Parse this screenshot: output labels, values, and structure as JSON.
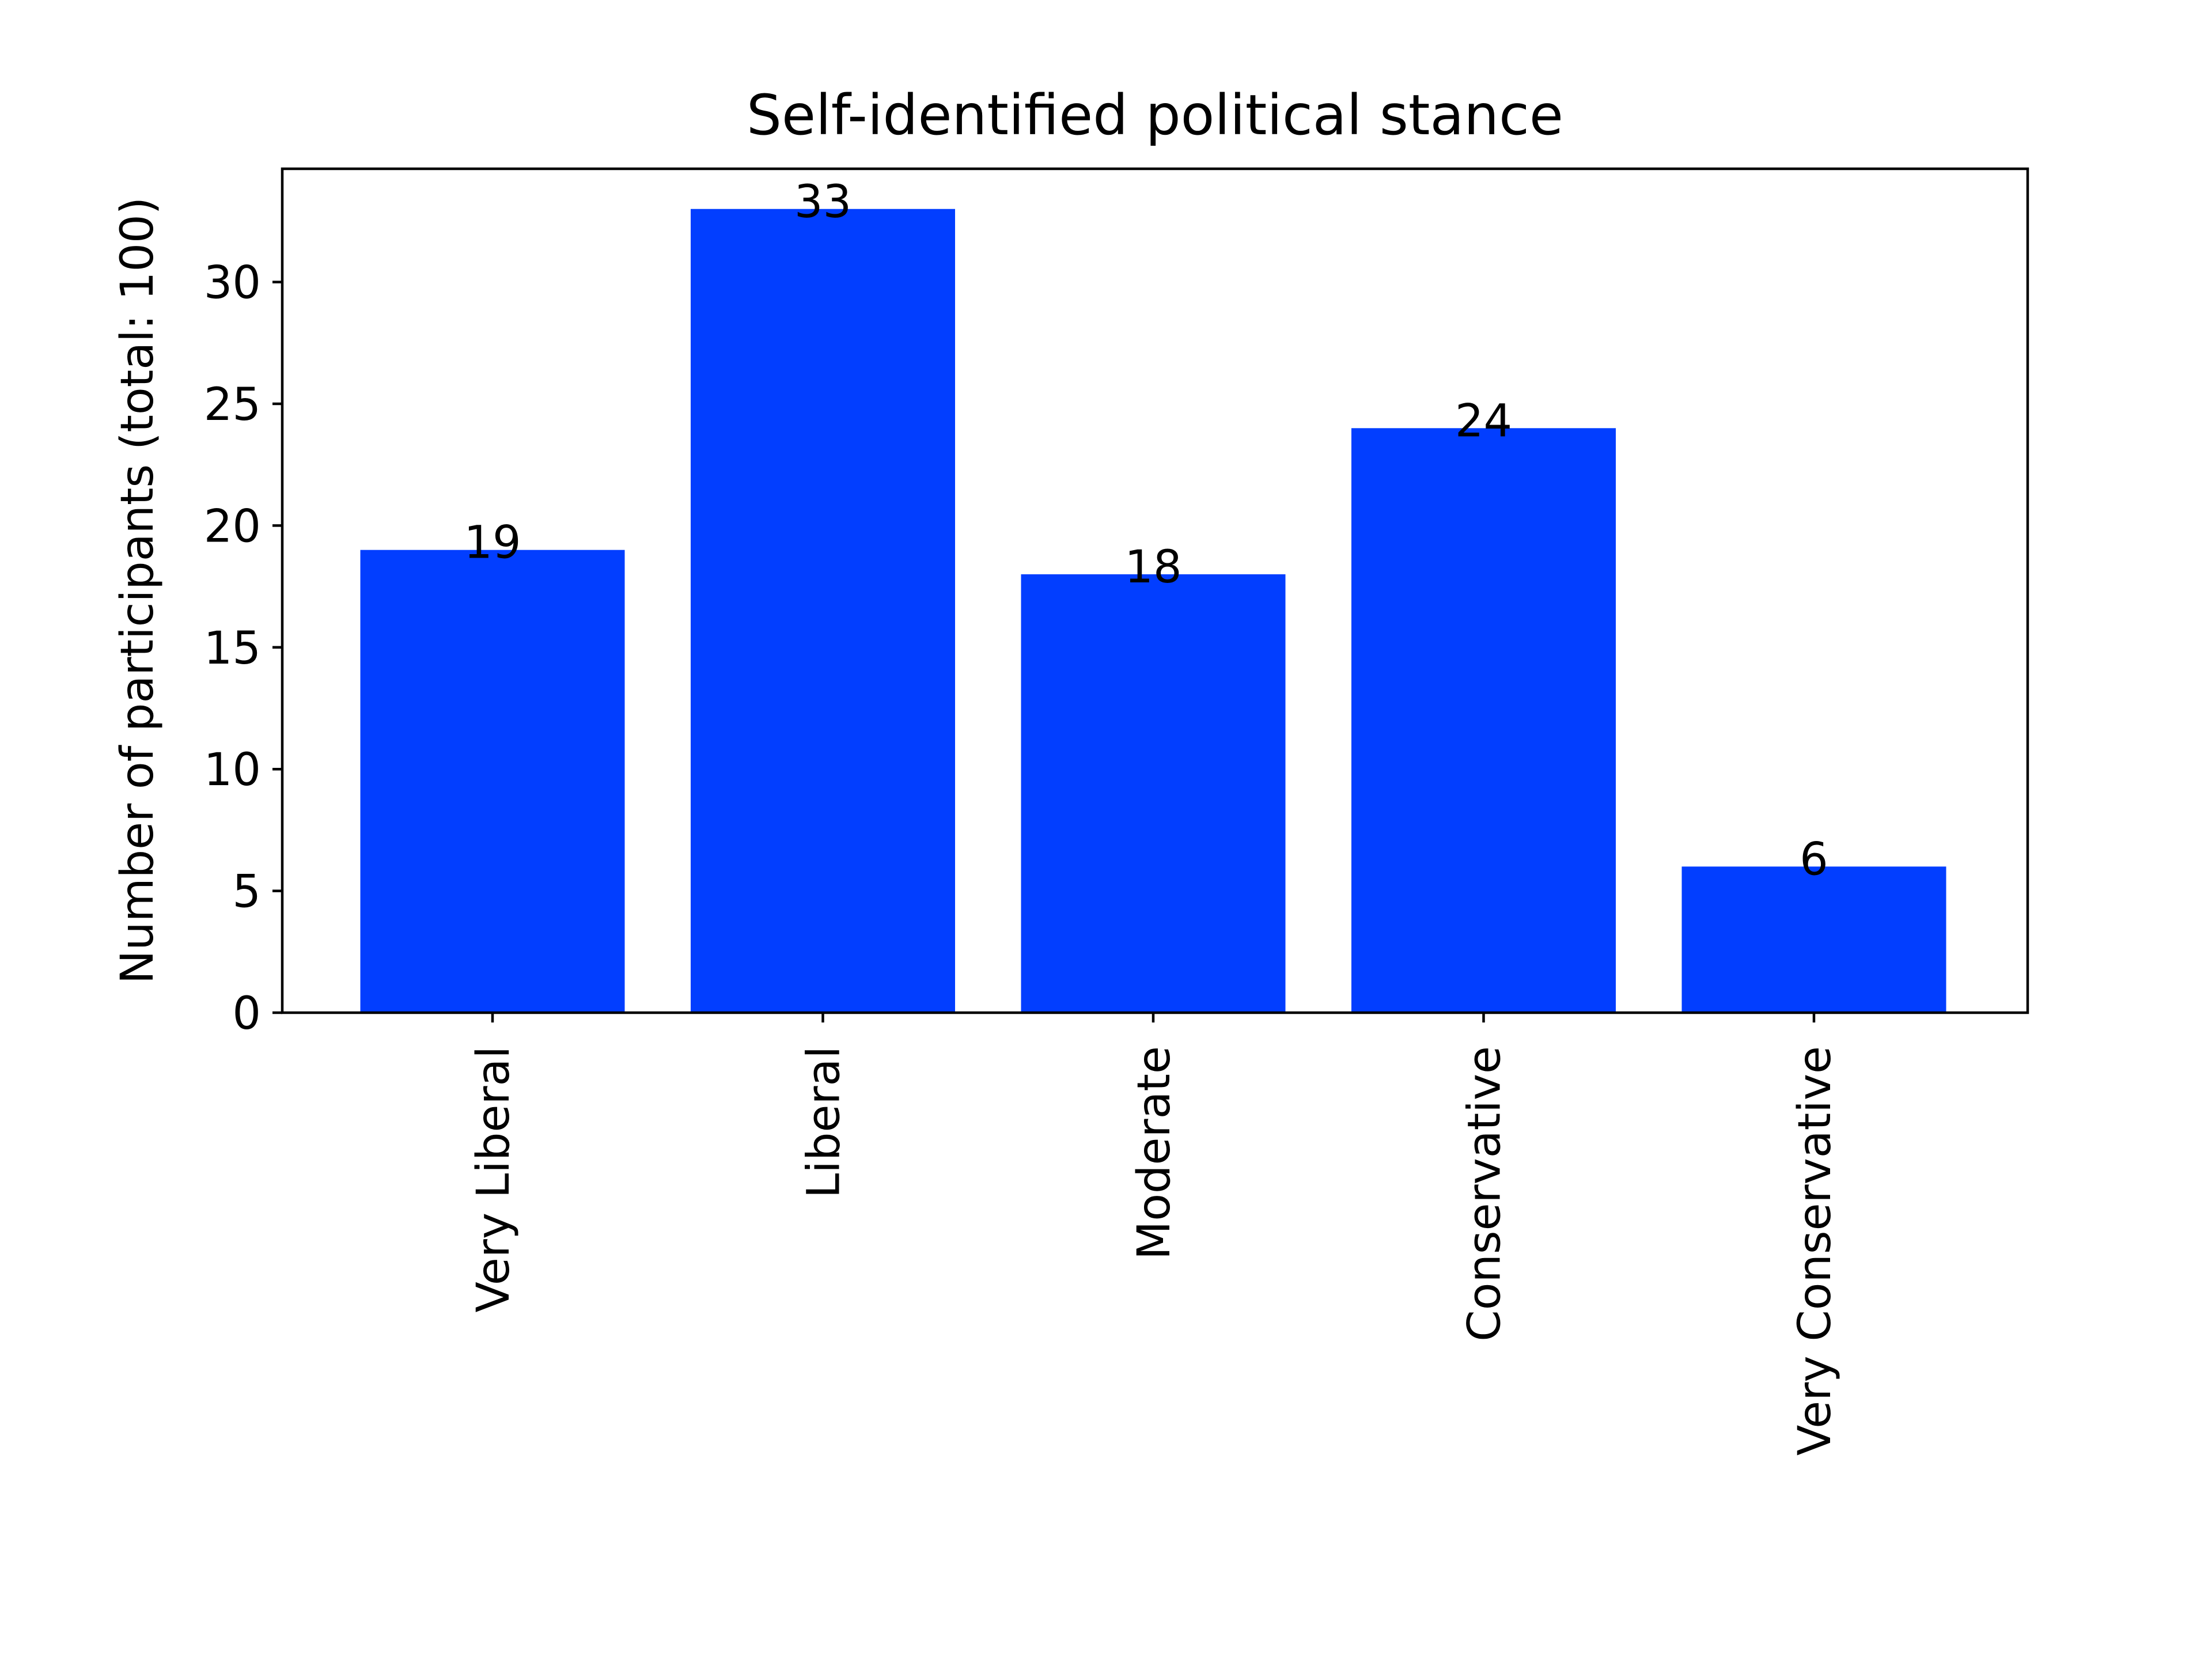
{
  "chart_data": {
    "type": "bar",
    "title": "Self-identified political stance",
    "xlabel": "",
    "ylabel": "Number of participants (total: 100)",
    "categories": [
      "Very Liberal",
      "Liberal",
      "Moderate",
      "Conservative",
      "Very Conservative"
    ],
    "values": [
      19,
      33,
      18,
      24,
      6
    ],
    "ylim": [
      0,
      34.65
    ],
    "yticks": [
      0,
      5,
      10,
      15,
      20,
      25,
      30
    ],
    "grid": false,
    "bar_color": "#023EFF"
  }
}
